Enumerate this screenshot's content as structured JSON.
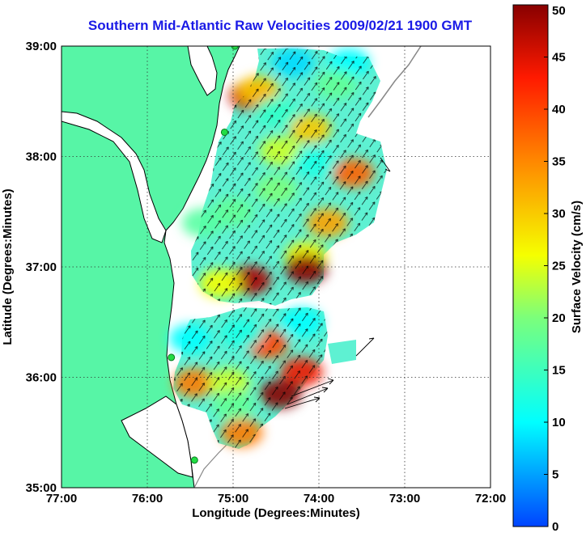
{
  "title": "Southern Mid-Atlantic Raw Velocities 2009/02/21 1900 GMT",
  "axes": {
    "xlabel": "Longitude (Degrees:Minutes)",
    "ylabel": "Latitude (Degrees:Minutes)",
    "x_ticks": [
      "77:00",
      "76:00",
      "75:00",
      "74:00",
      "73:00",
      "72:00"
    ],
    "y_ticks": [
      "39:00",
      "38:00",
      "37:00",
      "36:00",
      "35:00"
    ]
  },
  "colorbar": {
    "label": "Surface Velocity (cm/s)",
    "ticks": [
      "50",
      "45",
      "40",
      "35",
      "30",
      "25",
      "20",
      "15",
      "10",
      "5",
      "0"
    ]
  },
  "colors": {
    "land": "#57f5a6",
    "title": "#1a1ae6",
    "grid": "#555555"
  },
  "chart_data": {
    "type": "heatmap",
    "xlim": [
      -77,
      -72
    ],
    "ylim": [
      35,
      39
    ],
    "clim": [
      0,
      50
    ],
    "grid_lines": true,
    "stations": [
      {
        "lon": -74.98,
        "lat": 39.0
      },
      {
        "lon": -75.1,
        "lat": 38.22
      },
      {
        "lon": -75.72,
        "lat": 36.18
      },
      {
        "lon": -75.45,
        "lat": 35.25
      }
    ],
    "hotspots": [
      {
        "lon": -74.8,
        "lat": 38.55,
        "v": 46
      },
      {
        "lon": -74.7,
        "lat": 38.6,
        "v": 30
      },
      {
        "lon": -74.1,
        "lat": 38.25,
        "v": 30
      },
      {
        "lon": -73.6,
        "lat": 37.85,
        "v": 38
      },
      {
        "lon": -73.9,
        "lat": 37.4,
        "v": 33
      },
      {
        "lon": -74.15,
        "lat": 37.1,
        "v": 27
      },
      {
        "lon": -74.8,
        "lat": 36.88,
        "v": 48
      },
      {
        "lon": -74.15,
        "lat": 36.98,
        "v": 50
      },
      {
        "lon": -74.6,
        "lat": 36.3,
        "v": 40
      },
      {
        "lon": -74.2,
        "lat": 36.05,
        "v": 44
      },
      {
        "lon": -74.45,
        "lat": 35.85,
        "v": 50
      },
      {
        "lon": -74.9,
        "lat": 35.5,
        "v": 36
      },
      {
        "lon": -75.45,
        "lat": 35.95,
        "v": 36
      },
      {
        "lon": -75.05,
        "lat": 35.95,
        "v": 24
      },
      {
        "lon": -75.15,
        "lat": 36.85,
        "v": 26
      },
      {
        "lon": -74.45,
        "lat": 38.05,
        "v": 24
      },
      {
        "lon": -74.5,
        "lat": 38.4,
        "v": 14
      },
      {
        "lon": -74.3,
        "lat": 38.85,
        "v": 8
      },
      {
        "lon": -73.65,
        "lat": 38.85,
        "v": 10
      },
      {
        "lon": -73.8,
        "lat": 38.65,
        "v": 18
      },
      {
        "lon": -74.05,
        "lat": 37.95,
        "v": 12
      },
      {
        "lon": -75.0,
        "lat": 37.5,
        "v": 18
      },
      {
        "lon": -74.5,
        "lat": 37.7,
        "v": 20
      },
      {
        "lon": -75.35,
        "lat": 37.4,
        "v": 17
      },
      {
        "lon": -74.9,
        "lat": 36.4,
        "v": 12
      },
      {
        "lon": -75.5,
        "lat": 36.35,
        "v": 10
      },
      {
        "lon": -74.2,
        "lat": 36.5,
        "v": 10
      },
      {
        "lon": -75.0,
        "lat": 35.75,
        "v": 18
      }
    ]
  }
}
